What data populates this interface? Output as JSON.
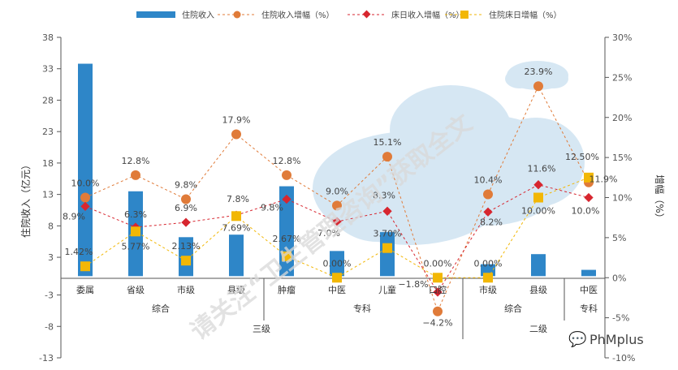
{
  "chart_data": {
    "type": "bar",
    "title": "",
    "ylabel": "住院收入（亿元）",
    "y2label": "增幅（%）",
    "ylim": [
      -13,
      38
    ],
    "yticks": [
      -13,
      -8,
      -3,
      3,
      8,
      13,
      18,
      23,
      28,
      33,
      38
    ],
    "y2lim": [
      -10,
      30
    ],
    "y2ticks": [
      "-10%",
      "-5%",
      "0%",
      "5%",
      "10%",
      "15%",
      "20%",
      "25%",
      "30%"
    ],
    "categories": [
      "委属",
      "省级",
      "市级",
      "县级",
      "肿瘤",
      "中医",
      "儿童",
      "口腔",
      "市级",
      "县级",
      "中医"
    ],
    "groups_level2": [
      {
        "label": "综合",
        "span": [
          0,
          3
        ]
      },
      {
        "label": "专科",
        "span": [
          4,
          7
        ]
      },
      {
        "label": "综合",
        "span": [
          8,
          9
        ]
      },
      {
        "label": "专科",
        "span": [
          10,
          10
        ]
      }
    ],
    "groups_level1": [
      {
        "label": "三级",
        "span": [
          0,
          7
        ]
      },
      {
        "label": "二级",
        "span": [
          8,
          10
        ]
      }
    ],
    "legend": [
      "住院收入",
      "住院收入增幅（%）",
      "床日收入增幅（%）",
      "住院床日增幅（%）"
    ],
    "colors": {
      "bar": "#2e86c8",
      "revenue_growth": "#e07b39",
      "bedday_revenue": "#d7262f",
      "bed_days": "#f2b705",
      "cloud": "#cfe3f2"
    },
    "series": [
      {
        "name": "住院收入",
        "axis": "left",
        "values": [
          33.8,
          13.5,
          6.2,
          6.6,
          14.3,
          4.0,
          7.0,
          0.0,
          1.9,
          3.5,
          1.0
        ]
      },
      {
        "name": "住院收入增幅（%）",
        "axis": "right",
        "values": [
          10.0,
          12.8,
          9.8,
          17.9,
          12.8,
          9.0,
          15.1,
          -4.2,
          10.4,
          23.9,
          11.9
        ],
        "labels": [
          "10.0%",
          "12.8%",
          "9.8%",
          "17.9%",
          "12.8%",
          "9.0%",
          "15.1%",
          "−4.2%",
          "10.4%",
          "23.9%",
          "11.9%"
        ]
      },
      {
        "name": "床日收入增幅（%）",
        "axis": "right",
        "values": [
          8.9,
          6.3,
          6.9,
          7.8,
          9.8,
          7.0,
          8.3,
          -1.8,
          8.2,
          11.6,
          10.0
        ],
        "labels": [
          "8.9%",
          "6.3%",
          "6.9%",
          "7.8%",
          "9.8%",
          "7.0%",
          "8.3%",
          "−1.8%",
          "8.2%",
          "11.6%",
          "10.0%"
        ]
      },
      {
        "name": "住院床日增幅（%）",
        "axis": "right",
        "values": [
          1.42,
          5.77,
          2.13,
          7.69,
          2.67,
          0.0,
          3.7,
          0.0,
          0.0,
          10.0,
          12.5
        ],
        "labels": [
          "1.42%",
          "5.77%",
          "2.13%",
          "7.69%",
          "2.67%",
          "0.00%",
          "3.70%",
          "0.00%",
          "0.00%",
          "10.00%",
          "12.50%"
        ]
      }
    ]
  },
  "watermark": "请关注“卫生管理咨询”获取全文",
  "brand": "PhMplus"
}
